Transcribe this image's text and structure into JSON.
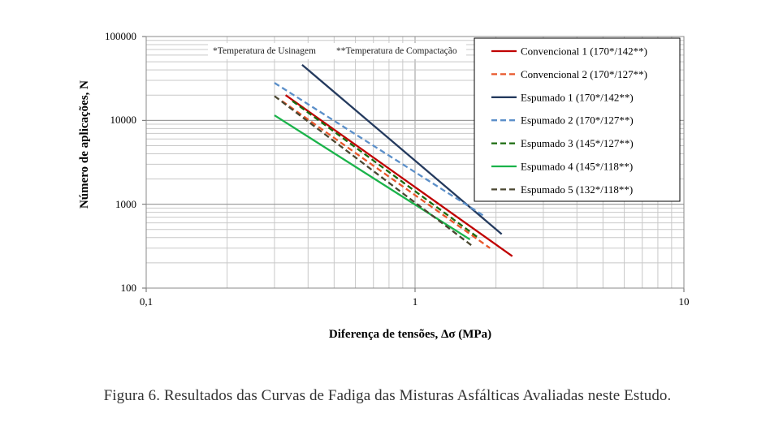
{
  "chart_data": {
    "type": "line",
    "x_scale": "log",
    "y_scale": "log",
    "xlim": [
      0.1,
      10
    ],
    "ylim": [
      100,
      100000
    ],
    "xlabel": "Diferença de tensões, Δσ (MPa)",
    "ylabel": "Número de aplicações, N",
    "x_ticks": [
      "0,1",
      "1",
      "10"
    ],
    "y_ticks": [
      "100",
      "1000",
      "10000",
      "100000"
    ],
    "grid": true,
    "legend_position": "top-right",
    "notes": [
      "*Temperatura de Usinagem",
      "**Temperatura de Compactação"
    ],
    "series": [
      {
        "name": "Convencional 1 (170*/142**)",
        "color": "#c00000",
        "dash": "solid",
        "points": [
          [
            0.33,
            20000
          ],
          [
            2.3,
            240
          ]
        ]
      },
      {
        "name": "Convencional 2 (170*/127**)",
        "color": "#e8562a",
        "dash": "dashed",
        "points": [
          [
            0.32,
            17000
          ],
          [
            1.9,
            300
          ]
        ]
      },
      {
        "name": "Espumado 1 (170*/142**)",
        "color": "#243a5e",
        "dash": "solid",
        "points": [
          [
            0.38,
            46000
          ],
          [
            2.1,
            440
          ]
        ]
      },
      {
        "name": "Espumado 2 (170*/127**)",
        "color": "#5b8fc9",
        "dash": "dashed",
        "points": [
          [
            0.3,
            28000
          ],
          [
            1.8,
            730
          ]
        ]
      },
      {
        "name": "Espumado 3 (145*/127**)",
        "color": "#1a6b0f",
        "dash": "dashed",
        "points": [
          [
            0.35,
            17000
          ],
          [
            1.7,
            410
          ]
        ]
      },
      {
        "name": "Espumado 4 (145*/118**)",
        "color": "#1ab34a",
        "dash": "solid",
        "points": [
          [
            0.3,
            11500
          ],
          [
            1.6,
            380
          ]
        ]
      },
      {
        "name": "Espumado 5 (132*/118**)",
        "color": "#4a4630",
        "dash": "dashed",
        "points": [
          [
            0.3,
            19500
          ],
          [
            1.65,
            310
          ]
        ]
      }
    ]
  },
  "caption": "Figura 6. Resultados das Curvas de Fadiga das Misturas Asfálticas Avaliadas neste Estudo."
}
